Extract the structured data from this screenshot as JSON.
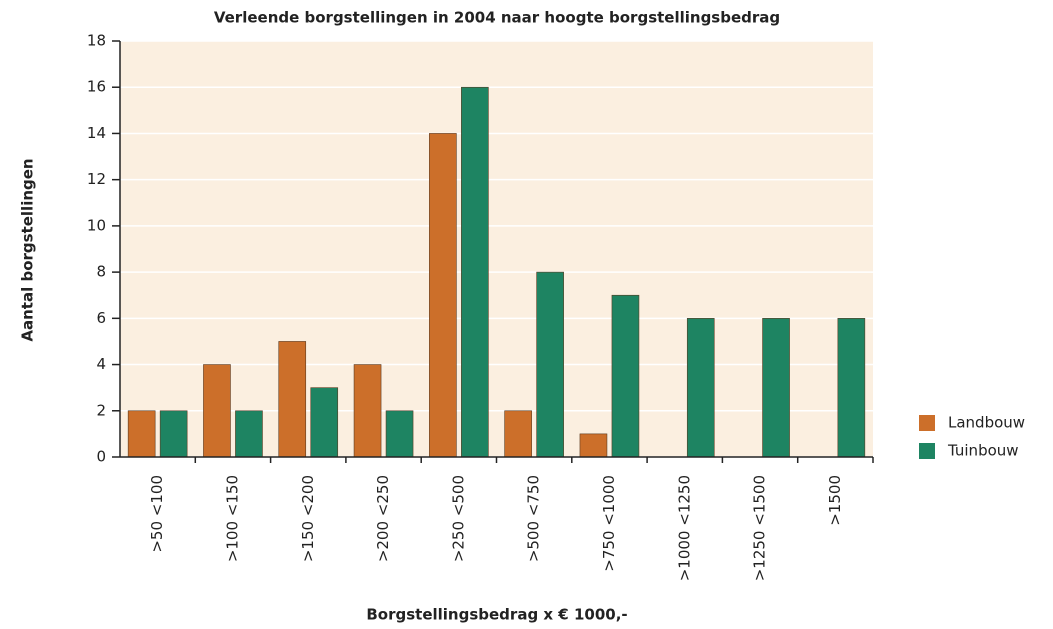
{
  "chart_data": {
    "type": "bar",
    "title": "Verleende borgstellingen in 2004 naar hoogte borgstellingsbedrag",
    "x_label": "Borgstellingsbedrag x € 1000,-",
    "y_label": "Aantal borgstellingen",
    "categories": [
      ">50 <100",
      ">100 <150",
      ">150 <200",
      ">200 <250",
      ">250 <500",
      ">500 <750",
      ">750 <1000",
      ">1000 <1250",
      ">1250 <1500",
      ">1500"
    ],
    "series": [
      {
        "name": "Landbouw",
        "color": "#cc6f2a",
        "values": [
          2,
          4,
          5,
          4,
          14,
          2,
          1,
          0,
          0,
          0
        ]
      },
      {
        "name": "Tuinbouw",
        "color": "#1e8462",
        "values": [
          2,
          2,
          3,
          2,
          16,
          8,
          7,
          6,
          6,
          6
        ]
      }
    ],
    "ylim": [
      0,
      18
    ],
    "yticks": [
      0,
      2,
      4,
      6,
      8,
      10,
      12,
      14,
      16,
      18
    ],
    "grid": true,
    "legend": "right"
  }
}
